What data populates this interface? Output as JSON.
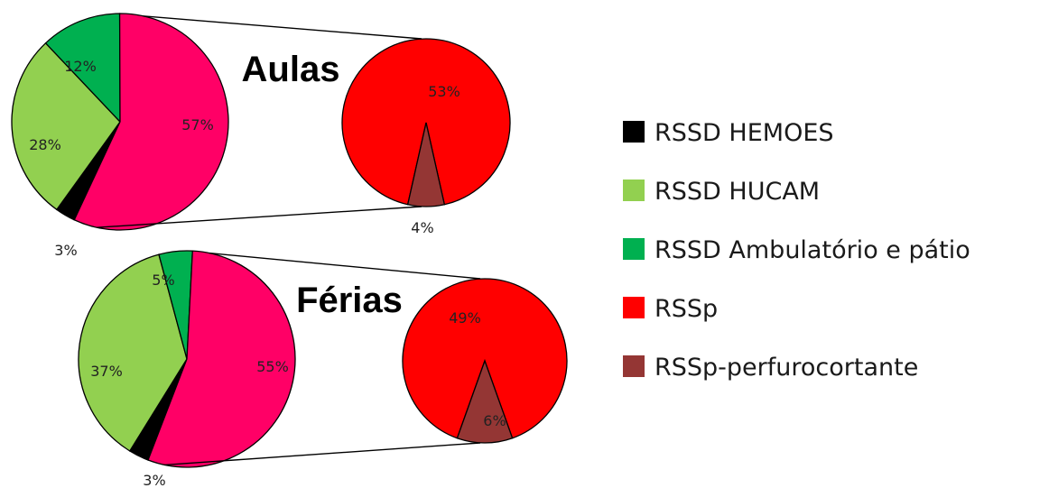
{
  "chart_data": [
    {
      "type": "pie",
      "title": "Aulas",
      "main": [
        {
          "name": "RSSD HEMOES",
          "value": 3,
          "label": "3%"
        },
        {
          "name": "RSSD HUCAM",
          "value": 28,
          "label": "28%"
        },
        {
          "name": "RSSD Ambulatório e pátio",
          "value": 12,
          "label": "12%"
        },
        {
          "name": "RSSp",
          "value": 57,
          "label": "57%"
        }
      ],
      "detail": [
        {
          "name": "RSSp",
          "value": 53,
          "label": "53%"
        },
        {
          "name": "RSSp-perfurocortante",
          "value": 4,
          "label": "4%"
        }
      ]
    },
    {
      "type": "pie",
      "title": "Férias",
      "main": [
        {
          "name": "RSSD HEMOES",
          "value": 3,
          "label": "3%"
        },
        {
          "name": "RSSD HUCAM",
          "value": 37,
          "label": "37%"
        },
        {
          "name": "RSSD Ambulatório e pátio",
          "value": 5,
          "label": "5%"
        },
        {
          "name": "RSSp",
          "value": 55,
          "label": "55%"
        }
      ],
      "detail": [
        {
          "name": "RSSp",
          "value": 49,
          "label": "49%"
        },
        {
          "name": "RSSp-perfurocortante",
          "value": 6,
          "label": "6%"
        }
      ]
    }
  ],
  "legend": {
    "placement": "right",
    "items": [
      {
        "name": "RSSD HEMOES",
        "color": "#000000"
      },
      {
        "name": "RSSD HUCAM",
        "color": "#92d050"
      },
      {
        "name": "RSSD Ambulatório e pátio",
        "color": "#00b050"
      },
      {
        "name": "RSSp",
        "color": "#ff0000"
      },
      {
        "name": "RSSp-perfurocortante",
        "color": "#943634"
      }
    ]
  },
  "colors": {
    "RSSD HEMOES": "#000000",
    "RSSD HUCAM": "#92d050",
    "RSSD Ambulatório e pátio": "#00b050",
    "RSSp-main": "#ff0066",
    "RSSp": "#ff0000",
    "RSSp-perfurocortante": "#943634"
  }
}
